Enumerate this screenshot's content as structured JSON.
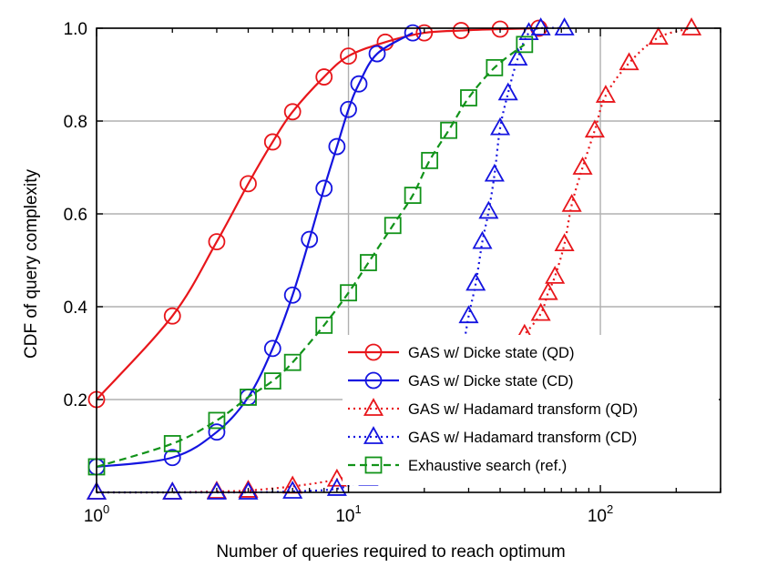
{
  "chart_data": {
    "type": "line",
    "title": "",
    "xlabel": "Number of queries required to reach optimum",
    "ylabel": "CDF of query complexity",
    "xscale": "log",
    "xlim": [
      1,
      300
    ],
    "ylim": [
      0,
      1
    ],
    "x_ticks": [
      {
        "value": 1,
        "base": "10",
        "exp": "0"
      },
      {
        "value": 10,
        "base": "10",
        "exp": "1"
      },
      {
        "value": 100,
        "base": "10",
        "exp": "2"
      }
    ],
    "y_ticks": [
      {
        "value": 0.2,
        "label": "0.2"
      },
      {
        "value": 0.4,
        "label": "0.4"
      },
      {
        "value": 0.6,
        "label": "0.6"
      },
      {
        "value": 0.8,
        "label": "0.8"
      },
      {
        "value": 1.0,
        "label": "1.0"
      }
    ],
    "grid": true,
    "legend_position": "bottom-right",
    "series": [
      {
        "name": "GAS w/ Dicke state (QD)",
        "color": "#e8161b",
        "line_style": "solid",
        "marker": "circle",
        "x": [
          1,
          2,
          3,
          4,
          5,
          6,
          8,
          10,
          14,
          20,
          28,
          40,
          57
        ],
        "y": [
          0.2,
          0.38,
          0.54,
          0.665,
          0.755,
          0.82,
          0.895,
          0.94,
          0.97,
          0.99,
          0.995,
          0.998,
          1.0
        ]
      },
      {
        "name": "GAS w/ Dicke state (CD)",
        "color": "#1414e0",
        "line_style": "solid",
        "marker": "circle",
        "x": [
          1,
          2,
          3,
          4,
          5,
          6,
          7,
          8,
          9,
          10,
          11,
          13,
          18
        ],
        "y": [
          0.055,
          0.075,
          0.13,
          0.205,
          0.31,
          0.425,
          0.545,
          0.655,
          0.745,
          0.825,
          0.88,
          0.945,
          0.99
        ]
      },
      {
        "name": "GAS w/ Hadamard transform (QD)",
        "color": "#e8161b",
        "line_style": "dotted",
        "marker": "triangle",
        "x": [
          1,
          2,
          3,
          4,
          6,
          9,
          14,
          20,
          24,
          30,
          35,
          40,
          45,
          50,
          58,
          62,
          66,
          72,
          77,
          85,
          95,
          105,
          130,
          170,
          230
        ],
        "y": [
          0.0,
          0.0,
          0.002,
          0.004,
          0.013,
          0.028,
          0.055,
          0.09,
          0.11,
          0.17,
          0.215,
          0.26,
          0.31,
          0.34,
          0.385,
          0.43,
          0.465,
          0.535,
          0.62,
          0.7,
          0.78,
          0.855,
          0.925,
          0.98,
          1.0
        ]
      },
      {
        "name": "GAS w/ Hadamard transform (CD)",
        "color": "#1414e0",
        "line_style": "dotted",
        "marker": "triangle",
        "x": [
          1,
          2,
          3,
          4,
          6,
          9,
          12,
          15,
          18,
          20,
          22,
          24,
          26,
          28,
          30,
          32,
          34,
          36,
          38,
          40,
          43,
          47,
          52,
          58,
          72
        ],
        "y": [
          0.0,
          0.0,
          0.0,
          0.0,
          0.002,
          0.008,
          0.03,
          0.05,
          0.075,
          0.11,
          0.15,
          0.2,
          0.24,
          0.29,
          0.38,
          0.45,
          0.54,
          0.605,
          0.685,
          0.785,
          0.86,
          0.935,
          0.99,
          1.0,
          1.0
        ]
      },
      {
        "name": "Exhaustive search (ref.)",
        "color": "#12931a",
        "line_style": "dashed",
        "marker": "square",
        "x": [
          1,
          2,
          3,
          4,
          5,
          6,
          8,
          10,
          12,
          15,
          18,
          21,
          25,
          30,
          38,
          50
        ],
        "y": [
          0.055,
          0.105,
          0.155,
          0.205,
          0.24,
          0.28,
          0.36,
          0.43,
          0.495,
          0.575,
          0.64,
          0.715,
          0.78,
          0.85,
          0.915,
          0.965
        ]
      }
    ]
  }
}
